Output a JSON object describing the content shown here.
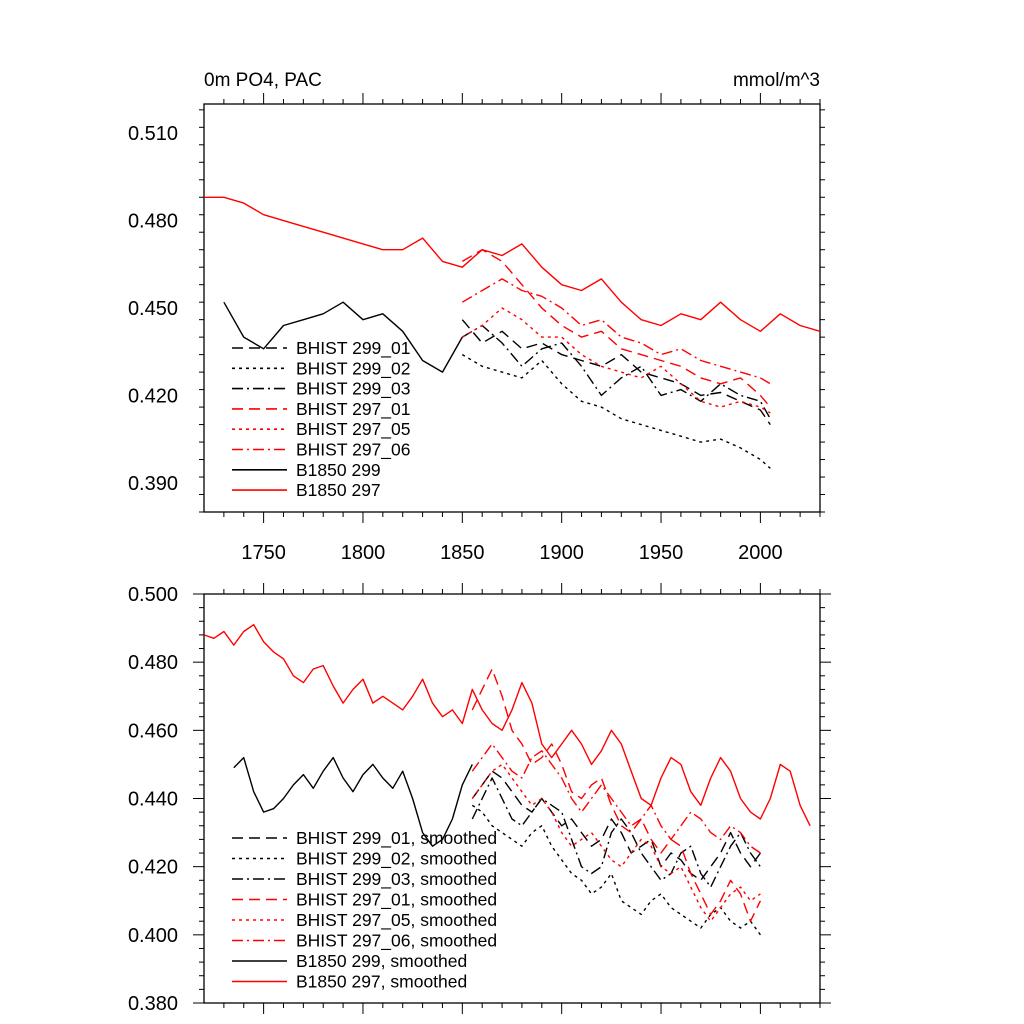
{
  "colors": {
    "black": "#000000",
    "red": "#ff0000",
    "background": "#ffffff"
  },
  "chart_data": [
    {
      "type": "line",
      "title": "0m PO4, PAC",
      "units": "mmol/m^3",
      "xlim": [
        1720,
        2030
      ],
      "ylim": [
        0.38,
        0.52
      ],
      "x_ticks": [
        1750,
        1800,
        1850,
        1900,
        1950,
        2000
      ],
      "x_tick_labels": [
        "1750",
        "1800",
        "1850",
        "1900",
        "1950",
        "2000"
      ],
      "y_ticks": [
        0.39,
        0.42,
        0.45,
        0.48,
        0.51
      ],
      "y_tick_labels": [
        "0.390",
        "0.420",
        "0.450",
        "0.480",
        "0.510"
      ],
      "grid": false,
      "legend_position": "bottom-left",
      "series": [
        {
          "name": "BHIST 299_01",
          "color": "#000000",
          "dash": "dashed",
          "start": 1850,
          "end": 2005,
          "x": [
            1850,
            1860,
            1870,
            1880,
            1890,
            1900,
            1910,
            1920,
            1930,
            1940,
            1950,
            1960,
            1970,
            1980,
            1990,
            2000,
            2005
          ],
          "y": [
            0.446,
            0.438,
            0.442,
            0.436,
            0.438,
            0.434,
            0.432,
            0.43,
            0.434,
            0.428,
            0.426,
            0.424,
            0.42,
            0.421,
            0.418,
            0.415,
            0.41
          ]
        },
        {
          "name": "BHIST 299_02",
          "color": "#000000",
          "dash": "dotted",
          "start": 1850,
          "end": 2005,
          "x": [
            1850,
            1860,
            1870,
            1880,
            1890,
            1900,
            1910,
            1920,
            1930,
            1940,
            1950,
            1960,
            1970,
            1980,
            1990,
            2000,
            2005
          ],
          "y": [
            0.434,
            0.43,
            0.428,
            0.426,
            0.432,
            0.424,
            0.418,
            0.416,
            0.412,
            0.41,
            0.408,
            0.406,
            0.404,
            0.405,
            0.402,
            0.398,
            0.395
          ]
        },
        {
          "name": "BHIST 299_03",
          "color": "#000000",
          "dash": "dashdot",
          "start": 1850,
          "end": 2005,
          "x": [
            1850,
            1860,
            1870,
            1880,
            1890,
            1900,
            1910,
            1920,
            1930,
            1940,
            1950,
            1960,
            1970,
            1980,
            1990,
            2000,
            2005
          ],
          "y": [
            0.44,
            0.444,
            0.438,
            0.43,
            0.436,
            0.438,
            0.43,
            0.42,
            0.426,
            0.43,
            0.42,
            0.422,
            0.418,
            0.424,
            0.42,
            0.418,
            0.412
          ]
        },
        {
          "name": "BHIST 297_01",
          "color": "#ff0000",
          "dash": "dashed",
          "start": 1850,
          "end": 2005,
          "x": [
            1850,
            1860,
            1870,
            1880,
            1890,
            1900,
            1910,
            1920,
            1930,
            1940,
            1950,
            1960,
            1970,
            1980,
            1990,
            2000,
            2005
          ],
          "y": [
            0.466,
            0.47,
            0.466,
            0.458,
            0.45,
            0.444,
            0.44,
            0.442,
            0.436,
            0.434,
            0.432,
            0.43,
            0.426,
            0.424,
            0.426,
            0.42,
            0.416
          ]
        },
        {
          "name": "BHIST 297_05",
          "color": "#ff0000",
          "dash": "dotted",
          "start": 1850,
          "end": 2005,
          "x": [
            1850,
            1860,
            1870,
            1880,
            1890,
            1900,
            1910,
            1920,
            1930,
            1940,
            1950,
            1960,
            1970,
            1980,
            1990,
            2000,
            2005
          ],
          "y": [
            0.44,
            0.444,
            0.45,
            0.446,
            0.44,
            0.44,
            0.434,
            0.43,
            0.428,
            0.426,
            0.43,
            0.424,
            0.418,
            0.416,
            0.418,
            0.416,
            0.414
          ]
        },
        {
          "name": "BHIST 297_06",
          "color": "#ff0000",
          "dash": "dashdot",
          "start": 1850,
          "end": 2005,
          "x": [
            1850,
            1860,
            1870,
            1880,
            1890,
            1900,
            1910,
            1920,
            1930,
            1940,
            1950,
            1960,
            1970,
            1980,
            1990,
            2000,
            2005
          ],
          "y": [
            0.452,
            0.456,
            0.46,
            0.456,
            0.454,
            0.45,
            0.444,
            0.446,
            0.44,
            0.438,
            0.434,
            0.436,
            0.432,
            0.43,
            0.428,
            0.426,
            0.424
          ]
        },
        {
          "name": "B1850 299",
          "color": "#000000",
          "dash": "solid",
          "start": 1730,
          "end": 1850,
          "x": [
            1730,
            1740,
            1750,
            1760,
            1770,
            1780,
            1790,
            1800,
            1810,
            1820,
            1830,
            1840,
            1850
          ],
          "y": [
            0.452,
            0.44,
            0.436,
            0.444,
            0.446,
            0.448,
            0.452,
            0.446,
            0.448,
            0.442,
            0.432,
            0.428,
            0.44
          ]
        },
        {
          "name": "B1850 297",
          "color": "#ff0000",
          "dash": "solid",
          "start": 1720,
          "end": 2030,
          "x": [
            1720,
            1730,
            1740,
            1750,
            1760,
            1770,
            1780,
            1790,
            1800,
            1810,
            1820,
            1830,
            1840,
            1850,
            1860,
            1870,
            1880,
            1890,
            1900,
            1910,
            1920,
            1930,
            1940,
            1950,
            1960,
            1970,
            1980,
            1990,
            2000,
            2010,
            2020,
            2030
          ],
          "y": [
            0.488,
            0.488,
            0.486,
            0.482,
            0.48,
            0.478,
            0.476,
            0.474,
            0.472,
            0.47,
            0.47,
            0.474,
            0.466,
            0.464,
            0.47,
            0.468,
            0.472,
            0.464,
            0.458,
            0.456,
            0.46,
            0.452,
            0.446,
            0.444,
            0.448,
            0.446,
            0.452,
            0.446,
            0.442,
            0.448,
            0.444,
            0.442
          ]
        }
      ]
    },
    {
      "type": "line",
      "title": "",
      "xlim": [
        1720,
        2030
      ],
      "ylim": [
        0.38,
        0.5
      ],
      "y_ticks": [
        0.38,
        0.4,
        0.42,
        0.44,
        0.46,
        0.48,
        0.5
      ],
      "y_tick_labels": [
        "0.380",
        "0.400",
        "0.420",
        "0.440",
        "0.460",
        "0.480",
        "0.500"
      ],
      "grid": false,
      "legend_position": "bottom-left",
      "series": [
        {
          "name": "BHIST 299_01, smoothed",
          "color": "#000000",
          "dash": "dashed",
          "x": [
            1855,
            1860,
            1865,
            1870,
            1875,
            1880,
            1885,
            1890,
            1895,
            1900,
            1905,
            1910,
            1915,
            1920,
            1925,
            1930,
            1935,
            1940,
            1945,
            1950,
            1955,
            1960,
            1965,
            1970,
            1975,
            1980,
            1985,
            1990,
            1995,
            2000
          ],
          "y": [
            0.44,
            0.444,
            0.448,
            0.446,
            0.442,
            0.438,
            0.436,
            0.44,
            0.436,
            0.432,
            0.434,
            0.43,
            0.426,
            0.428,
            0.434,
            0.43,
            0.424,
            0.426,
            0.428,
            0.42,
            0.424,
            0.422,
            0.418,
            0.416,
            0.42,
            0.424,
            0.43,
            0.424,
            0.42,
            0.424
          ]
        },
        {
          "name": "BHIST 299_02, smoothed",
          "color": "#000000",
          "dash": "dotted",
          "x": [
            1855,
            1860,
            1865,
            1870,
            1875,
            1880,
            1885,
            1890,
            1895,
            1900,
            1905,
            1910,
            1915,
            1920,
            1925,
            1930,
            1935,
            1940,
            1945,
            1950,
            1955,
            1960,
            1965,
            1970,
            1975,
            1980,
            1985,
            1990,
            1995,
            2000
          ],
          "y": [
            0.438,
            0.436,
            0.432,
            0.43,
            0.428,
            0.426,
            0.43,
            0.432,
            0.426,
            0.422,
            0.418,
            0.416,
            0.412,
            0.414,
            0.418,
            0.41,
            0.408,
            0.406,
            0.41,
            0.412,
            0.408,
            0.406,
            0.404,
            0.402,
            0.406,
            0.408,
            0.404,
            0.402,
            0.404,
            0.4
          ]
        },
        {
          "name": "BHIST 299_03, smoothed",
          "color": "#000000",
          "dash": "dashdot",
          "x": [
            1855,
            1860,
            1865,
            1870,
            1875,
            1880,
            1885,
            1890,
            1895,
            1900,
            1905,
            1910,
            1915,
            1920,
            1925,
            1930,
            1935,
            1940,
            1945,
            1950,
            1955,
            1960,
            1965,
            1970,
            1975,
            1980,
            1985,
            1990,
            1995,
            2000
          ],
          "y": [
            0.434,
            0.44,
            0.446,
            0.44,
            0.434,
            0.432,
            0.436,
            0.44,
            0.438,
            0.436,
            0.428,
            0.42,
            0.418,
            0.42,
            0.43,
            0.434,
            0.43,
            0.424,
            0.42,
            0.416,
            0.418,
            0.424,
            0.426,
            0.418,
            0.414,
            0.42,
            0.426,
            0.43,
            0.424,
            0.42
          ]
        },
        {
          "name": "BHIST 297_01, smoothed",
          "color": "#ff0000",
          "dash": "dashed",
          "x": [
            1855,
            1860,
            1865,
            1870,
            1875,
            1880,
            1885,
            1890,
            1895,
            1900,
            1905,
            1910,
            1915,
            1920,
            1925,
            1930,
            1935,
            1940,
            1945,
            1950,
            1955,
            1960,
            1965,
            1970,
            1975,
            1980,
            1985,
            1990,
            1995,
            2000
          ],
          "y": [
            0.466,
            0.472,
            0.478,
            0.47,
            0.46,
            0.456,
            0.45,
            0.452,
            0.456,
            0.45,
            0.442,
            0.44,
            0.444,
            0.446,
            0.438,
            0.432,
            0.43,
            0.434,
            0.428,
            0.424,
            0.428,
            0.426,
            0.418,
            0.412,
            0.406,
            0.41,
            0.416,
            0.412,
            0.404,
            0.41
          ]
        },
        {
          "name": "BHIST 297_05, smoothed",
          "color": "#ff0000",
          "dash": "dotted",
          "x": [
            1855,
            1860,
            1865,
            1870,
            1875,
            1880,
            1885,
            1890,
            1895,
            1900,
            1905,
            1910,
            1915,
            1920,
            1925,
            1930,
            1935,
            1940,
            1945,
            1950,
            1955,
            1960,
            1965,
            1970,
            1975,
            1980,
            1985,
            1990,
            1995,
            2000
          ],
          "y": [
            0.44,
            0.444,
            0.448,
            0.45,
            0.446,
            0.442,
            0.438,
            0.44,
            0.436,
            0.43,
            0.426,
            0.428,
            0.43,
            0.426,
            0.422,
            0.42,
            0.424,
            0.428,
            0.426,
            0.42,
            0.418,
            0.42,
            0.414,
            0.408,
            0.404,
            0.408,
            0.412,
            0.414,
            0.41,
            0.412
          ]
        },
        {
          "name": "BHIST 297_06, smoothed",
          "color": "#ff0000",
          "dash": "dashdot",
          "x": [
            1855,
            1860,
            1865,
            1870,
            1875,
            1880,
            1885,
            1890,
            1895,
            1900,
            1905,
            1910,
            1915,
            1920,
            1925,
            1930,
            1935,
            1940,
            1945,
            1950,
            1955,
            1960,
            1965,
            1970,
            1975,
            1980,
            1985,
            1990,
            1995,
            2000
          ],
          "y": [
            0.448,
            0.452,
            0.456,
            0.452,
            0.448,
            0.446,
            0.452,
            0.454,
            0.45,
            0.446,
            0.44,
            0.436,
            0.44,
            0.444,
            0.44,
            0.436,
            0.432,
            0.434,
            0.438,
            0.432,
            0.428,
            0.432,
            0.436,
            0.434,
            0.43,
            0.428,
            0.432,
            0.43,
            0.426,
            0.424
          ]
        },
        {
          "name": "B1850 299, smoothed",
          "color": "#000000",
          "dash": "solid",
          "x": [
            1735,
            1740,
            1745,
            1750,
            1755,
            1760,
            1765,
            1770,
            1775,
            1780,
            1785,
            1790,
            1795,
            1800,
            1805,
            1810,
            1815,
            1820,
            1825,
            1830,
            1835,
            1840,
            1845,
            1850,
            1855
          ],
          "y": [
            0.449,
            0.452,
            0.442,
            0.436,
            0.437,
            0.44,
            0.444,
            0.447,
            0.443,
            0.448,
            0.452,
            0.446,
            0.442,
            0.447,
            0.45,
            0.446,
            0.443,
            0.448,
            0.44,
            0.43,
            0.426,
            0.428,
            0.434,
            0.444,
            0.45
          ]
        },
        {
          "name": "B1850 297, smoothed",
          "color": "#ff0000",
          "dash": "solid",
          "x": [
            1720,
            1725,
            1730,
            1735,
            1740,
            1745,
            1750,
            1755,
            1760,
            1765,
            1770,
            1775,
            1780,
            1785,
            1790,
            1795,
            1800,
            1805,
            1810,
            1815,
            1820,
            1825,
            1830,
            1835,
            1840,
            1845,
            1850,
            1855,
            1860,
            1865,
            1870,
            1875,
            1880,
            1885,
            1890,
            1895,
            1900,
            1905,
            1910,
            1915,
            1920,
            1925,
            1930,
            1935,
            1940,
            1945,
            1950,
            1955,
            1960,
            1965,
            1970,
            1975,
            1980,
            1985,
            1990,
            1995,
            2000,
            2005,
            2010,
            2015,
            2020,
            2025
          ],
          "y": [
            0.488,
            0.487,
            0.489,
            0.485,
            0.489,
            0.491,
            0.486,
            0.483,
            0.481,
            0.476,
            0.474,
            0.478,
            0.479,
            0.473,
            0.468,
            0.472,
            0.475,
            0.468,
            0.47,
            0.468,
            0.466,
            0.47,
            0.475,
            0.468,
            0.464,
            0.466,
            0.462,
            0.472,
            0.466,
            0.462,
            0.46,
            0.466,
            0.474,
            0.468,
            0.456,
            0.452,
            0.456,
            0.46,
            0.456,
            0.45,
            0.454,
            0.46,
            0.456,
            0.448,
            0.44,
            0.438,
            0.446,
            0.452,
            0.45,
            0.442,
            0.438,
            0.446,
            0.452,
            0.448,
            0.44,
            0.436,
            0.434,
            0.44,
            0.45,
            0.448,
            0.438,
            0.432
          ]
        }
      ]
    }
  ]
}
